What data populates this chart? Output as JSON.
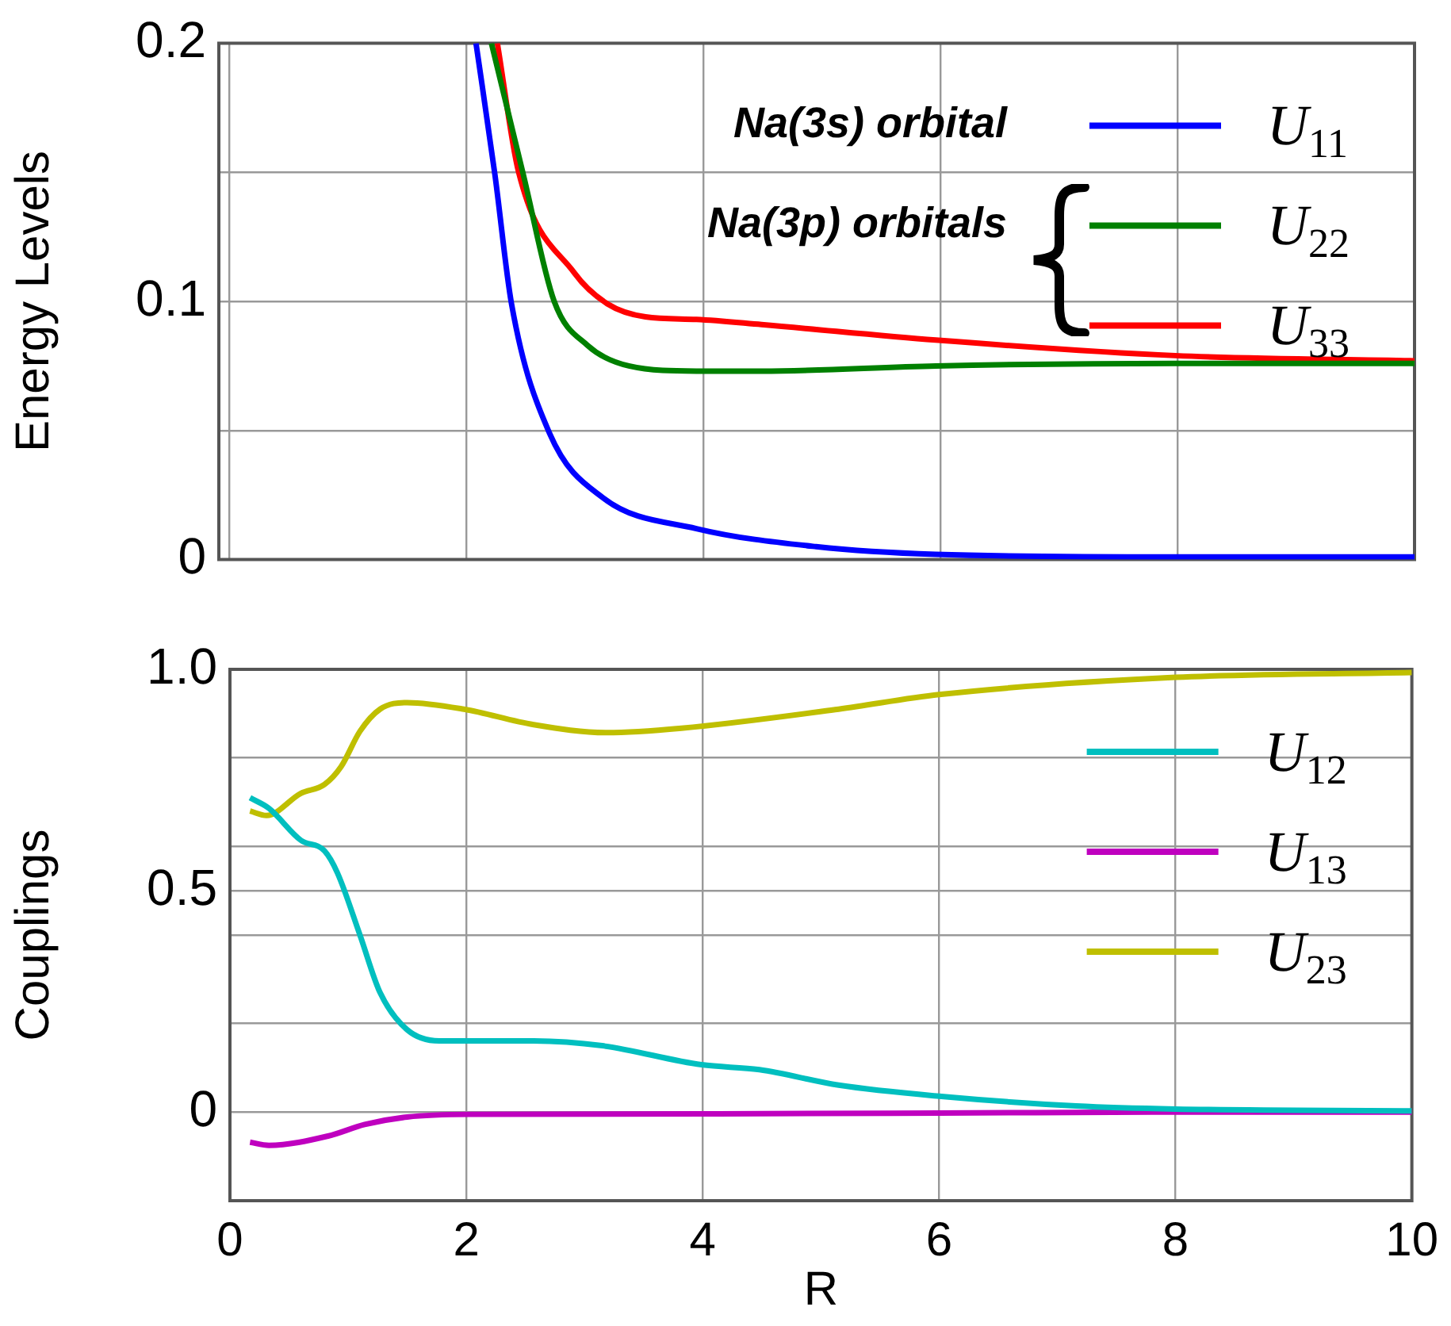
{
  "chart_data": [
    {
      "type": "line",
      "ylabel": "Energy Levels",
      "xlim": [
        -0.09,
        10
      ],
      "xticks": [
        0,
        2,
        4,
        6,
        8,
        10
      ],
      "ylim": [
        0,
        0.2
      ],
      "yticks": [
        0,
        {
          "value": 0.05,
          "label": null
        },
        0.1,
        {
          "value": 0.15,
          "label": null
        },
        0.2
      ],
      "grid": true,
      "legend": "top right",
      "tick_labels": "y",
      "annotations": [
        "Na(3s) orbital",
        "Na(3p) orbitals"
      ],
      "series": [
        {
          "name": "U$_{11}$",
          "color": "#0000ff",
          "x": [
            2.08,
            2.24,
            2.38,
            2.7,
            3.15,
            3.94,
            4.95,
            5.96,
            7.98,
            10.0
          ],
          "values": [
            0.2,
            0.149,
            0.099,
            0.049,
            0.024,
            0.012,
            0.005,
            0.002,
            0.001,
            0.001
          ]
        },
        {
          "name": "U$_{22}$",
          "color": "#008000",
          "x": [
            2.21,
            2.48,
            2.74,
            3.02,
            3.37,
            3.94,
            4.49,
            5.96,
            7.98,
            10.0
          ],
          "values": [
            0.2,
            0.149,
            0.1,
            0.083,
            0.075,
            0.073,
            0.073,
            0.075,
            0.076,
            0.076
          ]
        },
        {
          "name": "U$_{33}$",
          "color": "#ff0000",
          "x": [
            2.26,
            2.44,
            2.91,
            3.19,
            3.51,
            3.94,
            4.49,
            5.96,
            7.98,
            10.0
          ],
          "values": [
            0.2,
            0.15,
            0.111,
            0.099,
            0.094,
            0.093,
            0.091,
            0.085,
            0.079,
            0.077
          ]
        }
      ]
    },
    {
      "type": "line",
      "xlabel": "R",
      "ylabel": "Couplings",
      "xlim": [
        0,
        10
      ],
      "xticks": [
        0,
        2,
        4,
        6,
        8,
        10
      ],
      "ylim": [
        -0.2,
        1.0
      ],
      "yticks": [
        0,
        {
          "value": 0.2,
          "label": null
        },
        {
          "value": 0.4,
          "label": null
        },
        0.5,
        {
          "value": 0.6,
          "label": null
        },
        {
          "value": 0.8,
          "label": null
        },
        {
          "value": 1,
          "label": "1.0"
        }
      ],
      "grid": true,
      "legend": "top right",
      "series": [
        {
          "name": "U$_{12}$",
          "color": "#00bfbf",
          "x": [
            0.17,
            0.33,
            0.6,
            0.8,
            0.91,
            1.1,
            1.27,
            1.5,
            1.77,
            2.57,
            3.15,
            3.99,
            4.48,
            5.15,
            6.0,
            7.16,
            8.0,
            10.0
          ],
          "values": [
            0.71,
            0.686,
            0.614,
            0.59,
            0.54,
            0.4,
            0.27,
            0.186,
            0.161,
            0.161,
            0.15,
            0.107,
            0.096,
            0.061,
            0.036,
            0.014,
            0.007,
            0.003
          ]
        },
        {
          "name": "U$_{13}$",
          "color": "#bf00bf",
          "x": [
            0.17,
            0.33,
            0.83,
            1.14,
            1.5,
            2.03,
            4.0,
            6.0,
            8.0,
            10.0
          ],
          "values": [
            -0.068,
            -0.075,
            -0.054,
            -0.028,
            -0.011,
            -0.005,
            -0.004,
            -0.002,
            0,
            0
          ]
        },
        {
          "name": "U$_{23}$",
          "color": "#bfbf00",
          "x": [
            0.17,
            0.31,
            0.6,
            0.8,
            0.94,
            1.1,
            1.27,
            1.5,
            1.98,
            2.57,
            3.19,
            3.82,
            5.15,
            6.0,
            8.0,
            10.0
          ],
          "values": [
            0.68,
            0.67,
            0.72,
            0.74,
            0.78,
            0.86,
            0.91,
            0.925,
            0.91,
            0.875,
            0.857,
            0.867,
            0.91,
            0.943,
            0.982,
            0.993
          ]
        }
      ]
    }
  ]
}
